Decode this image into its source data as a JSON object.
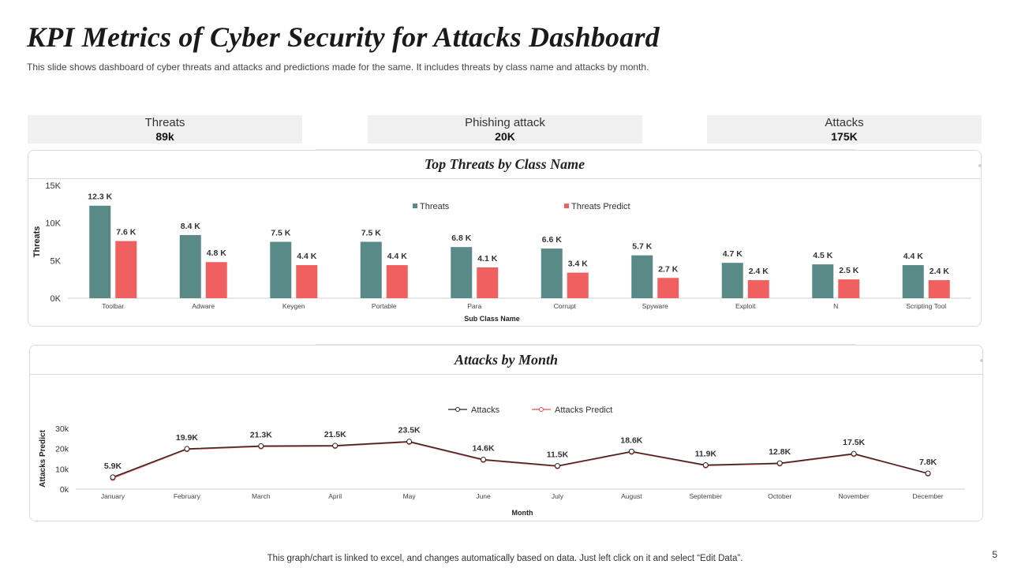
{
  "header": {
    "title": "KPI Metrics of Cyber Security for Attacks Dashboard",
    "subtitle": "This slide shows dashboard of cyber threats and attacks and predictions made for the same. It includes threats by class name and attacks by month."
  },
  "kpis": [
    {
      "label": "Threats",
      "value": "89k"
    },
    {
      "label": "Phishing attack",
      "value": "20K"
    },
    {
      "label": "Attacks",
      "value": "175K"
    }
  ],
  "colors": {
    "threats": "#5a8a87",
    "threats_predict": "#f06060",
    "attacks": "#222222",
    "attacks_predict": "#e05050"
  },
  "chart_data": [
    {
      "type": "bar",
      "title": "Top Threats by Class Name",
      "xlabel": "Sub Class Name",
      "ylabel": "Threats",
      "ylim": [
        0,
        15
      ],
      "yticks": [
        "0K",
        "5K",
        "10K",
        "15K"
      ],
      "categories": [
        "Toolbar",
        "Adware",
        "Keygen",
        "Portable",
        "Para",
        "Corrupt",
        "Spyware",
        "Exploit",
        "N",
        "Scripting Tool"
      ],
      "series": [
        {
          "name": "Threats",
          "values": [
            12.3,
            8.4,
            7.5,
            7.5,
            6.8,
            6.6,
            5.7,
            4.7,
            4.5,
            4.4
          ],
          "labels": [
            "12.3 K",
            "8.4 K",
            "7.5 K",
            "7.5 K",
            "6.8 K",
            "6.6 K",
            "5.7 K",
            "4.7 K",
            "4.5 K",
            "4.4 K"
          ]
        },
        {
          "name": "Threats Predict",
          "values": [
            7.6,
            4.8,
            4.4,
            4.4,
            4.1,
            3.4,
            2.7,
            2.4,
            2.5,
            2.4
          ],
          "labels": [
            "7.6 K",
            "4.8 K",
            "4.4 K",
            "4.4 K",
            "4.1 K",
            "3.4 K",
            "2.7 K",
            "2.4 K",
            "2.5 K",
            "2.4 K"
          ]
        }
      ],
      "legend": "top-right"
    },
    {
      "type": "line",
      "title": "Attacks by Month",
      "xlabel": "Month",
      "ylabel": "Attacks Predict",
      "ylim": [
        0,
        30
      ],
      "yticks": [
        "0k",
        "10k",
        "20k",
        "30k"
      ],
      "categories": [
        "January",
        "February",
        "March",
        "April",
        "May",
        "June",
        "July",
        "August",
        "September",
        "October",
        "November",
        "December"
      ],
      "series": [
        {
          "name": "Attacks",
          "values": [
            5.9,
            19.9,
            21.3,
            21.5,
            23.5,
            14.6,
            11.5,
            18.6,
            11.9,
            12.8,
            17.5,
            7.8
          ],
          "labels": [
            "5.9K",
            "19.9K",
            "21.3K",
            "21.5K",
            "23.5K",
            "14.6K",
            "11.5K",
            "18.6K",
            "11.9K",
            "12.8K",
            "17.5K",
            "7.8K"
          ]
        },
        {
          "name": "Attacks Predict",
          "values": [
            5.4,
            19.6,
            21.0,
            21.2,
            23.2,
            14.3,
            11.2,
            18.3,
            11.6,
            12.5,
            17.2,
            7.6
          ]
        }
      ],
      "legend": "top-center"
    }
  ],
  "footer": {
    "note": "This graph/chart is linked to excel,  and changes automatically based on data. Just left click on it and select “Edit Data”.",
    "page": "5"
  }
}
